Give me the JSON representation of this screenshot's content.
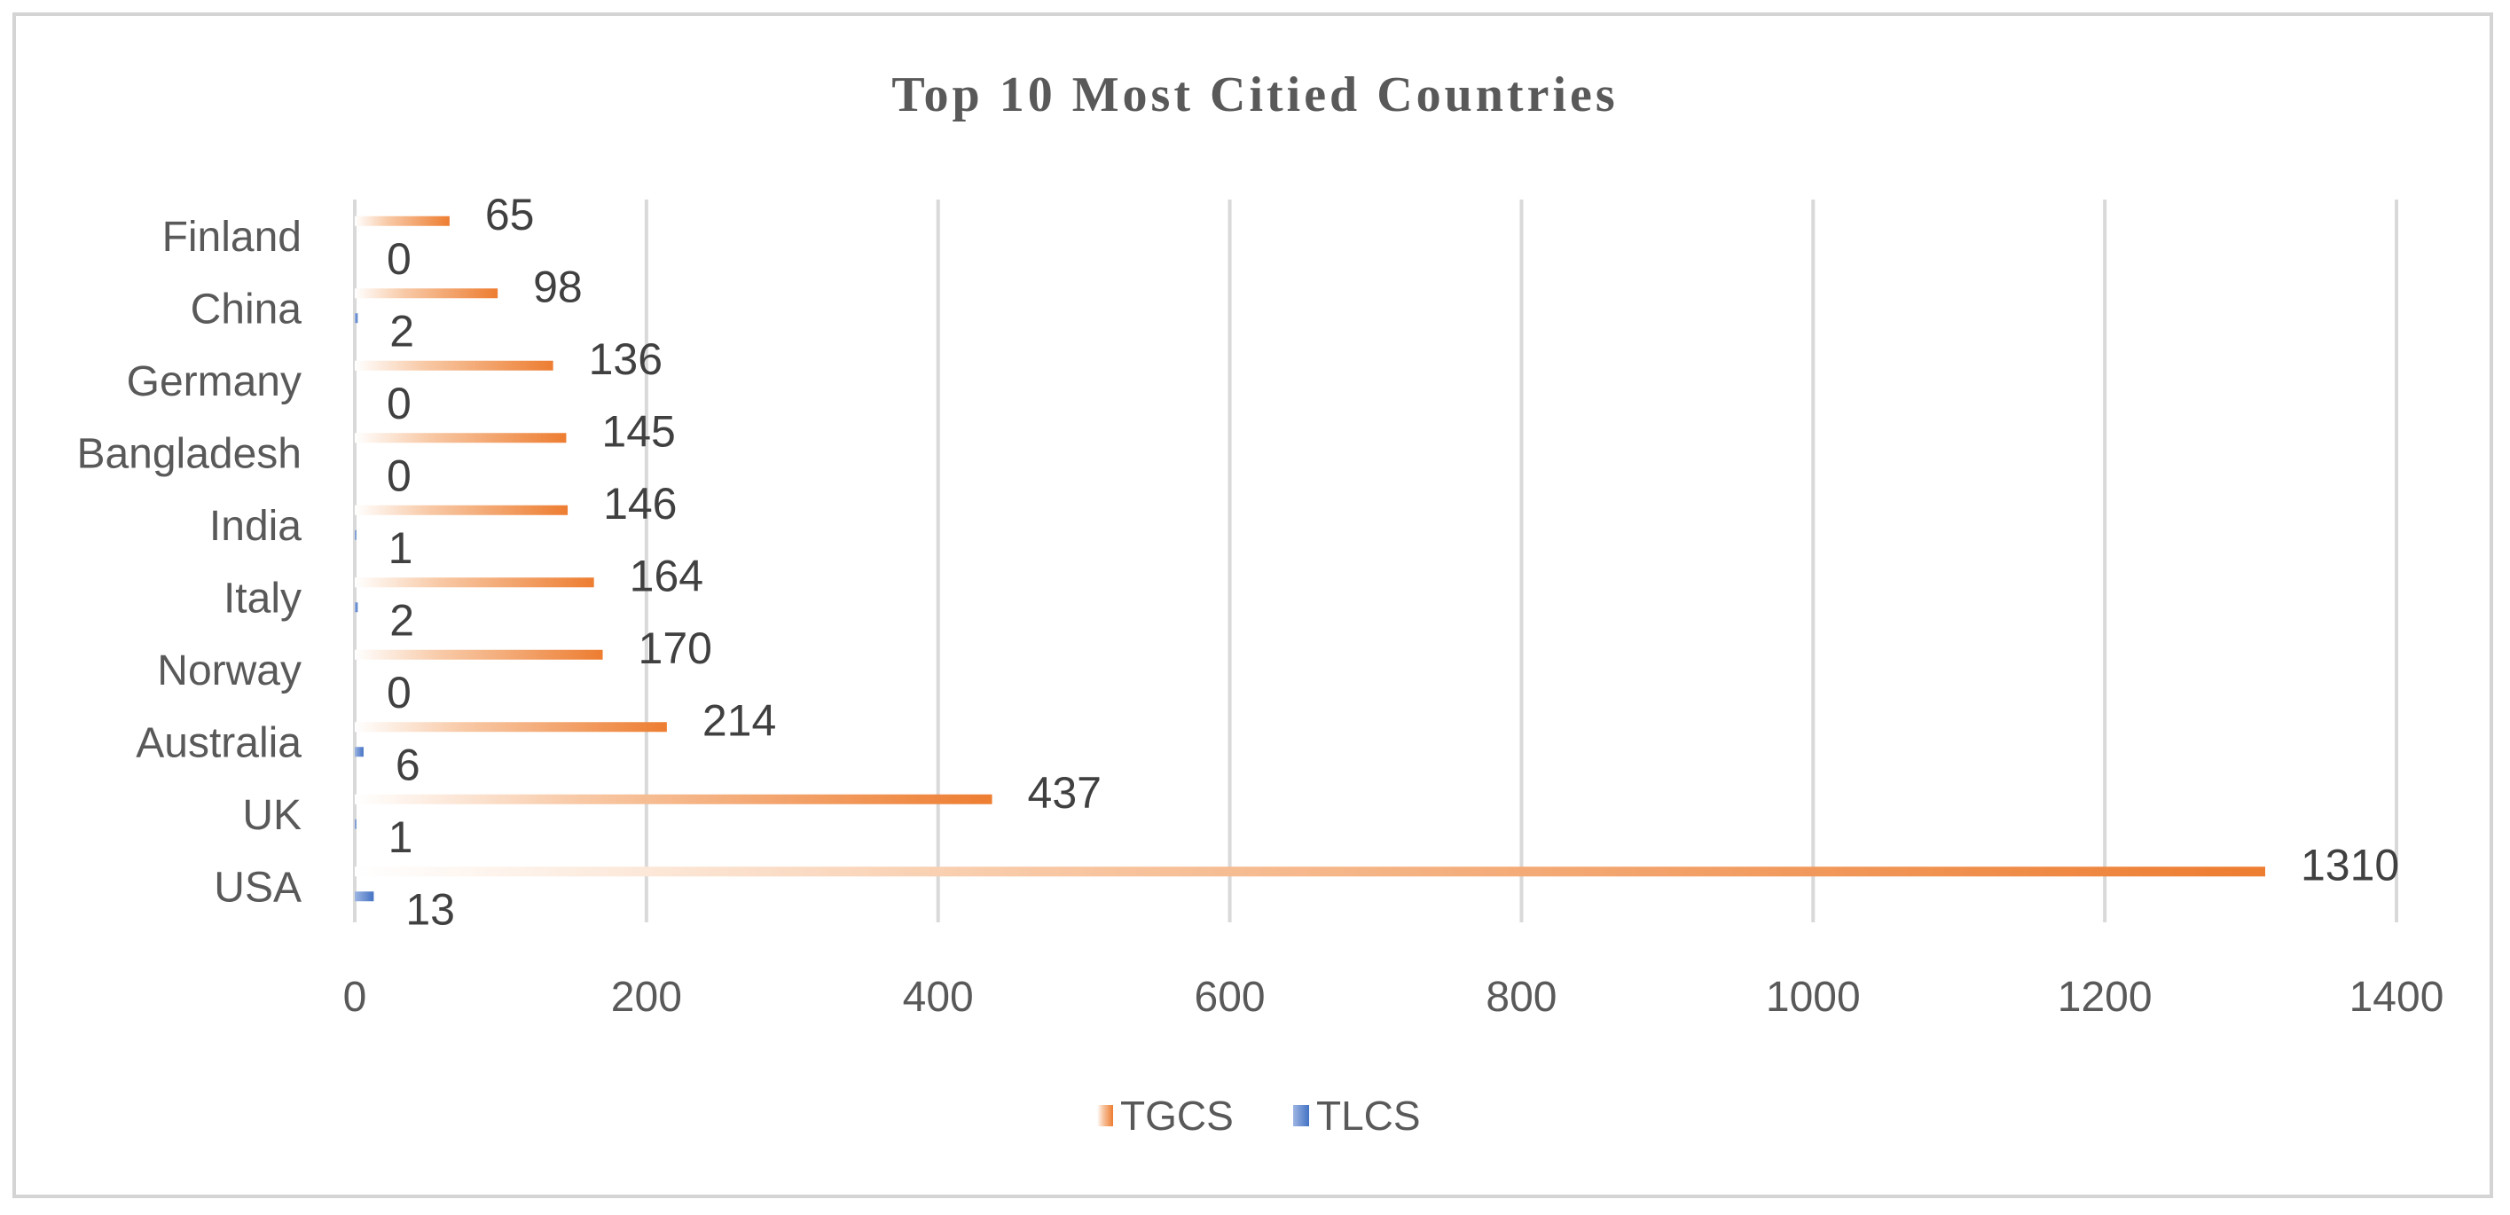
{
  "chart_data": {
    "type": "bar",
    "orientation": "horizontal",
    "title": "Top 10 Most Citied Countries",
    "categories": [
      "USA",
      "UK",
      "Australia",
      "Norway",
      "Italy",
      "India",
      "Bangladesh",
      "Germany",
      "China",
      "Finland"
    ],
    "series": [
      {
        "name": "TGCS",
        "color": "#ed7d31",
        "values": [
          1310,
          437,
          214,
          170,
          164,
          146,
          145,
          136,
          98,
          65
        ]
      },
      {
        "name": "TLCS",
        "color": "#4472c4",
        "values": [
          13,
          1,
          6,
          0,
          2,
          1,
          0,
          0,
          2,
          0
        ]
      }
    ],
    "xlim": [
      0,
      1400
    ],
    "xticks": [
      0,
      200,
      400,
      600,
      800,
      1000,
      1200,
      1400
    ],
    "grid": "vertical",
    "legend_position": "bottom",
    "xlabel": "",
    "ylabel": ""
  }
}
